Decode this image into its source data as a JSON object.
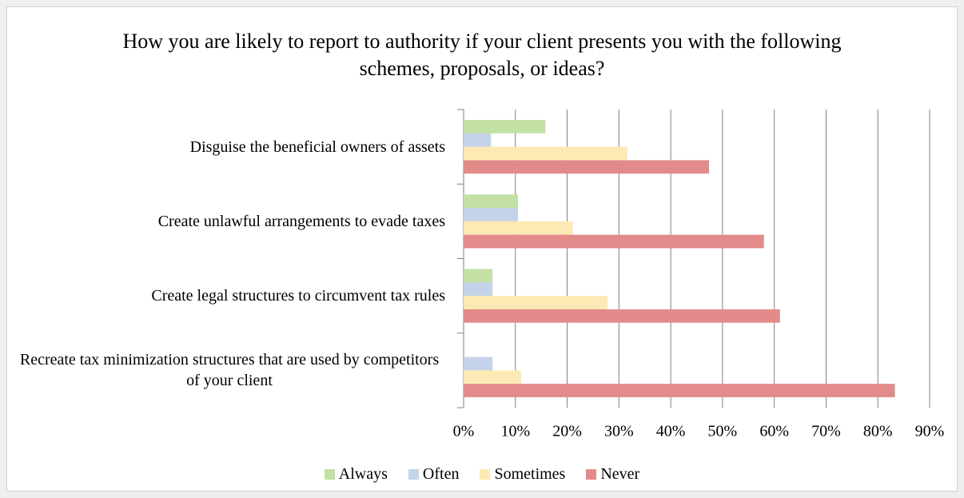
{
  "chart_data": {
    "type": "hbar",
    "title": "How you are likely to report to authority if your client presents you with the following schemes, proposals, or ideas?",
    "categories": [
      "Disguise the beneficial owners of assets",
      "Create unlawful arrangements to evade taxes",
      "Create legal structures to circumvent tax rules",
      "Recreate tax minimization structures that are used by competitors of your client"
    ],
    "series": [
      {
        "name": "Always",
        "color": "#c3e0a5",
        "values": [
          15.8,
          10.5,
          5.6,
          0
        ]
      },
      {
        "name": "Often",
        "color": "#c5d3ea",
        "values": [
          5.3,
          10.5,
          5.6,
          5.6
        ]
      },
      {
        "name": "Sometimes",
        "color": "#fde9b3",
        "values": [
          31.6,
          21.1,
          27.8,
          11.1
        ]
      },
      {
        "name": "Never",
        "color": "#e38a8a",
        "values": [
          47.4,
          58,
          61.1,
          83.3
        ]
      }
    ],
    "xlim": [
      0,
      90
    ],
    "xticks": [
      {
        "value": 0,
        "label": "0%"
      },
      {
        "value": 10,
        "label": "10%"
      },
      {
        "value": 20,
        "label": "20%"
      },
      {
        "value": 30,
        "label": "30%"
      },
      {
        "value": 40,
        "label": "40%"
      },
      {
        "value": 50,
        "label": "50%"
      },
      {
        "value": 60,
        "label": "60%"
      },
      {
        "value": 70,
        "label": "70%"
      },
      {
        "value": 80,
        "label": "80%"
      },
      {
        "value": 90,
        "label": "90%"
      }
    ],
    "grid": true,
    "legend": "bottom"
  }
}
